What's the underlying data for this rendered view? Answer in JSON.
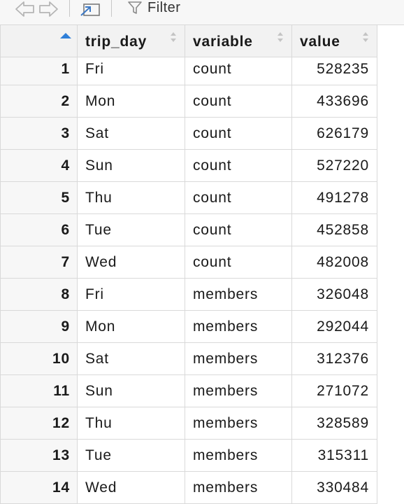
{
  "toolbar": {
    "back_icon": "back-arrow-icon",
    "forward_icon": "forward-arrow-icon",
    "popout_icon": "popout-window-icon",
    "filter_icon": "funnel-icon",
    "filter_label": "Filter"
  },
  "table": {
    "columns": [
      {
        "label": "",
        "sort": "ascending"
      },
      {
        "label": "trip_day",
        "sort": "none"
      },
      {
        "label": "variable",
        "sort": "none"
      },
      {
        "label": "value",
        "sort": "none"
      }
    ],
    "rows": [
      {
        "index": "1",
        "trip_day": "Fri",
        "variable": "count",
        "value": "528235"
      },
      {
        "index": "2",
        "trip_day": "Mon",
        "variable": "count",
        "value": "433696"
      },
      {
        "index": "3",
        "trip_day": "Sat",
        "variable": "count",
        "value": "626179"
      },
      {
        "index": "4",
        "trip_day": "Sun",
        "variable": "count",
        "value": "527220"
      },
      {
        "index": "5",
        "trip_day": "Thu",
        "variable": "count",
        "value": "491278"
      },
      {
        "index": "6",
        "trip_day": "Tue",
        "variable": "count",
        "value": "452858"
      },
      {
        "index": "7",
        "trip_day": "Wed",
        "variable": "count",
        "value": "482008"
      },
      {
        "index": "8",
        "trip_day": "Fri",
        "variable": "members",
        "value": "326048"
      },
      {
        "index": "9",
        "trip_day": "Mon",
        "variable": "members",
        "value": "292044"
      },
      {
        "index": "10",
        "trip_day": "Sat",
        "variable": "members",
        "value": "312376"
      },
      {
        "index": "11",
        "trip_day": "Sun",
        "variable": "members",
        "value": "271072"
      },
      {
        "index": "12",
        "trip_day": "Thu",
        "variable": "members",
        "value": "328589"
      },
      {
        "index": "13",
        "trip_day": "Tue",
        "variable": "members",
        "value": "315311"
      },
      {
        "index": "14",
        "trip_day": "Wed",
        "variable": "members",
        "value": "330484"
      }
    ]
  },
  "colors": {
    "toolbar_bg": "#f7f7f7",
    "header_bg": "#f2f2f2",
    "grid_line": "#d9d9d9",
    "sort_active": "#2f7fd8",
    "icon_gray": "#b5b5b5"
  }
}
